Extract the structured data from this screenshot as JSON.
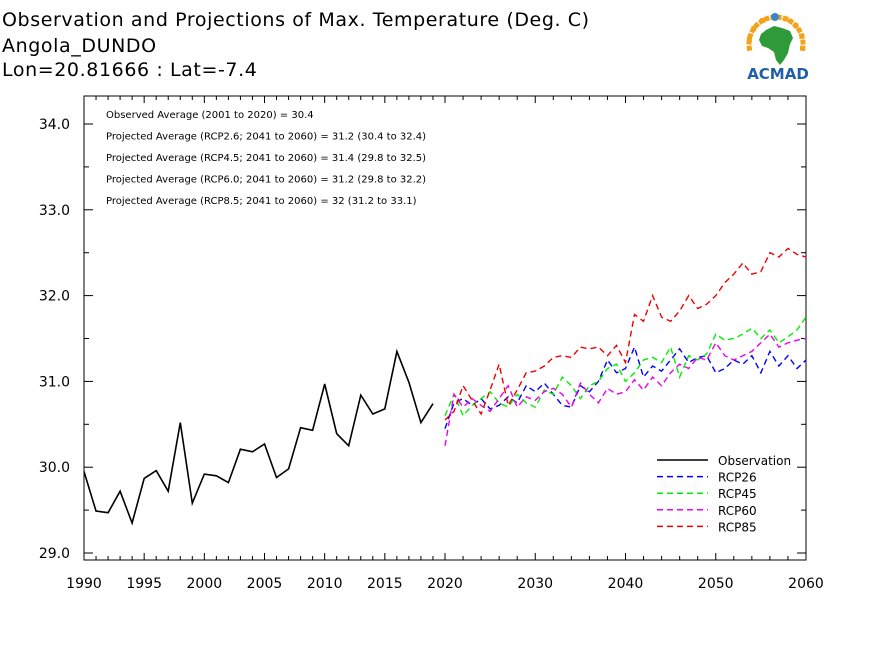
{
  "header": {
    "title": "Observation and Projections of Max. Temperature (Deg. C)",
    "location": "Angola_DUNDO",
    "coords": "Lon=20.81666 : Lat=-7.4"
  },
  "logo": {
    "text": "ACMAD",
    "icon": "africa-sun-logo-icon"
  },
  "annotations": [
    "Observed Average (2001 to 2020) = 30.4",
    "Projected Average (RCP2.6; 2041 to 2060) = 31.2 (30.4 to 32.4)",
    "Projected Average (RCP4.5; 2041 to 2060) = 31.4 (29.8 to 32.5)",
    "Projected Average (RCP6.0; 2041 to 2060) = 31.2 (29.8 to 32.2)",
    "Projected Average (RCP8.5; 2041 to 2060) = 32 (31.2 to 33.1)"
  ],
  "chart_data": {
    "type": "line",
    "title": "Observation and Projections of Max. Temperature (Deg. C)",
    "xlim": [
      1990,
      2060
    ],
    "ylim": [
      28.9,
      34.2
    ],
    "grid": false,
    "legend_position": "bottom-right",
    "x_ticks": [
      1990,
      1995,
      2000,
      2005,
      2010,
      2015,
      2020,
      2030,
      2040,
      2050,
      2060
    ],
    "x_tick_labels": [
      "1990",
      "1995",
      "2000",
      "2005",
      "2010",
      "2015",
      "2020",
      "2030",
      "2040",
      "2050",
      "2060"
    ],
    "y_ticks": [
      29.0,
      30.0,
      31.0,
      32.0,
      33.0,
      34.0
    ],
    "y_tick_labels": [
      "29.0",
      "30.0",
      "31.0",
      "32.0",
      "33.0",
      "34.0"
    ],
    "series": [
      {
        "name": "Observation",
        "color": "#000000",
        "dash": "solid",
        "x": [
          1990,
          1991,
          1992,
          1993,
          1994,
          1995,
          1996,
          1997,
          1998,
          1999,
          2000,
          2001,
          2002,
          2003,
          2004,
          2005,
          2006,
          2007,
          2008,
          2009,
          2010,
          2011,
          2012,
          2013,
          2014,
          2015,
          2016,
          2017,
          2018,
          2019
        ],
        "y": [
          29.95,
          29.49,
          29.47,
          29.72,
          29.35,
          29.87,
          29.96,
          29.72,
          30.52,
          29.58,
          29.92,
          29.9,
          29.82,
          30.21,
          30.18,
          30.27,
          29.88,
          29.98,
          30.46,
          30.43,
          30.97,
          30.39,
          30.25,
          30.84,
          30.62,
          30.68,
          31.35,
          30.99,
          30.52,
          30.74
        ]
      },
      {
        "name": "RCP26",
        "color": "#0000ff",
        "dash": "dashed",
        "x": [
          2020,
          2021,
          2022,
          2023,
          2024,
          2025,
          2026,
          2027,
          2028,
          2029,
          2030,
          2031,
          2032,
          2033,
          2034,
          2035,
          2036,
          2037,
          2038,
          2039,
          2040,
          2041,
          2042,
          2043,
          2044,
          2045,
          2046,
          2047,
          2048,
          2049,
          2050,
          2051,
          2052,
          2053,
          2054,
          2055,
          2056,
          2057,
          2058,
          2059,
          2060
        ],
        "y": [
          30.45,
          30.75,
          30.8,
          30.72,
          30.8,
          30.68,
          30.72,
          30.82,
          30.75,
          30.95,
          30.88,
          30.98,
          30.85,
          30.72,
          30.7,
          30.95,
          30.88,
          31.0,
          31.25,
          31.1,
          31.15,
          31.4,
          31.05,
          31.18,
          31.12,
          31.25,
          31.38,
          31.22,
          31.28,
          31.3,
          31.1,
          31.15,
          31.25,
          31.2,
          31.3,
          31.1,
          31.35,
          31.18,
          31.3,
          31.15,
          31.25
        ]
      },
      {
        "name": "RCP45",
        "color": "#00ee00",
        "dash": "dashed",
        "x": [
          2020,
          2021,
          2022,
          2023,
          2024,
          2025,
          2026,
          2027,
          2028,
          2029,
          2030,
          2031,
          2032,
          2033,
          2034,
          2035,
          2036,
          2037,
          2038,
          2039,
          2040,
          2041,
          2042,
          2043,
          2044,
          2045,
          2046,
          2047,
          2048,
          2049,
          2050,
          2051,
          2052,
          2053,
          2054,
          2055,
          2056,
          2057,
          2058,
          2059,
          2060
        ],
        "y": [
          30.6,
          30.85,
          30.6,
          30.72,
          30.8,
          30.88,
          30.75,
          30.7,
          30.85,
          30.75,
          30.7,
          30.9,
          30.85,
          31.05,
          30.95,
          30.8,
          30.95,
          31.0,
          31.15,
          31.2,
          31.0,
          31.1,
          31.25,
          31.28,
          31.22,
          31.4,
          31.05,
          31.3,
          31.25,
          31.32,
          31.55,
          31.48,
          31.5,
          31.55,
          31.62,
          31.5,
          31.6,
          31.45,
          31.52,
          31.6,
          31.75
        ]
      },
      {
        "name": "RCP60",
        "color": "#ee00ee",
        "dash": "dashed",
        "x": [
          2020,
          2021,
          2022,
          2023,
          2024,
          2025,
          2026,
          2027,
          2028,
          2029,
          2030,
          2031,
          2032,
          2033,
          2034,
          2035,
          2036,
          2037,
          2038,
          2039,
          2040,
          2041,
          2042,
          2043,
          2044,
          2045,
          2046,
          2047,
          2048,
          2049,
          2050,
          2051,
          2052,
          2053,
          2054,
          2055,
          2056,
          2057,
          2058,
          2059,
          2060
        ],
        "y": [
          30.25,
          30.85,
          30.7,
          30.8,
          30.72,
          30.65,
          30.8,
          30.95,
          30.7,
          30.82,
          30.78,
          30.88,
          30.92,
          30.85,
          30.7,
          30.98,
          30.85,
          30.75,
          30.92,
          30.85,
          30.88,
          31.02,
          30.9,
          31.05,
          30.95,
          31.1,
          31.2,
          31.15,
          31.28,
          31.25,
          31.45,
          31.3,
          31.25,
          31.3,
          31.35,
          31.45,
          31.55,
          31.4,
          31.45,
          31.48,
          31.5
        ]
      },
      {
        "name": "RCP85",
        "color": "#ee0000",
        "dash": "dashed",
        "x": [
          2020,
          2021,
          2022,
          2023,
          2024,
          2025,
          2026,
          2027,
          2028,
          2029,
          2030,
          2031,
          2032,
          2033,
          2034,
          2035,
          2036,
          2037,
          2038,
          2039,
          2040,
          2041,
          2042,
          2043,
          2044,
          2045,
          2046,
          2047,
          2048,
          2049,
          2050,
          2051,
          2052,
          2053,
          2054,
          2055,
          2056,
          2057,
          2058,
          2059,
          2060
        ],
        "y": [
          30.55,
          30.65,
          30.95,
          30.78,
          30.62,
          30.9,
          31.2,
          30.72,
          30.9,
          31.1,
          31.12,
          31.18,
          31.28,
          31.3,
          31.28,
          31.4,
          31.38,
          31.4,
          31.3,
          31.42,
          31.22,
          31.78,
          31.7,
          32.0,
          31.75,
          31.7,
          31.82,
          32.0,
          31.85,
          31.9,
          32.0,
          32.15,
          32.25,
          32.38,
          32.25,
          32.28,
          32.5,
          32.45,
          32.55,
          32.48,
          32.45
        ]
      }
    ]
  }
}
